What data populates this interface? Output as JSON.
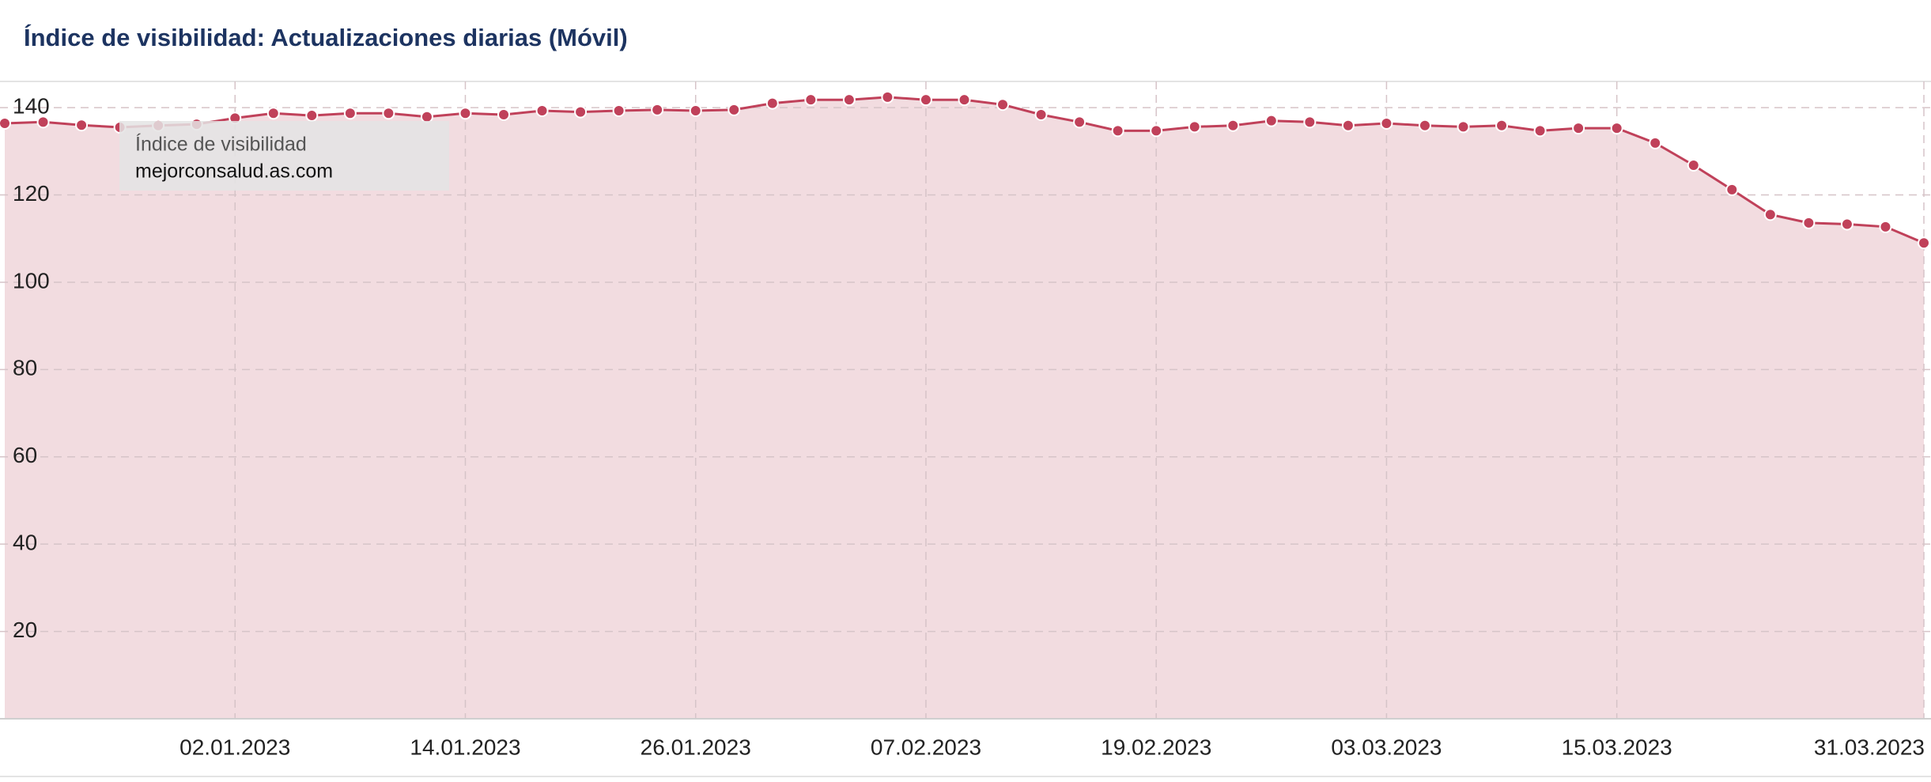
{
  "chart_data": {
    "type": "area",
    "title": "Índice de visibilidad: Actualizaciones diarias (Móvil)",
    "tooltip": {
      "label": "Índice de visibilidad",
      "site": "mejorconsalud.as.com"
    },
    "x": [
      "21.12.2022",
      "23.12.2022",
      "25.12.2022",
      "27.12.2022",
      "29.12.2022",
      "31.12.2022",
      "02.01.2023",
      "04.01.2023",
      "06.01.2023",
      "08.01.2023",
      "10.01.2023",
      "12.01.2023",
      "14.01.2023",
      "16.01.2023",
      "18.01.2023",
      "20.01.2023",
      "22.01.2023",
      "24.01.2023",
      "26.01.2023",
      "28.01.2023",
      "30.01.2023",
      "01.02.2023",
      "03.02.2023",
      "05.02.2023",
      "07.02.2023",
      "09.02.2023",
      "11.02.2023",
      "13.02.2023",
      "15.02.2023",
      "17.02.2023",
      "19.02.2023",
      "21.02.2023",
      "23.02.2023",
      "25.02.2023",
      "27.02.2023",
      "01.03.2023",
      "03.03.2023",
      "05.03.2023",
      "07.03.2023",
      "09.03.2023",
      "11.03.2023",
      "13.03.2023",
      "15.03.2023",
      "17.03.2023",
      "19.03.2023",
      "21.03.2023",
      "23.03.2023",
      "25.03.2023",
      "27.03.2023",
      "29.03.2023",
      "31.03.2023"
    ],
    "series": [
      {
        "name": "mejorconsalud.as.com",
        "color": "#c0415a",
        "fill": "#f2dce0",
        "values": [
          136.4,
          136.7,
          136,
          135.5,
          135.9,
          136.2,
          137.6,
          138.7,
          138.2,
          138.7,
          138.7,
          137.9,
          138.7,
          138.4,
          139.3,
          139,
          139.3,
          139.5,
          139.3,
          139.5,
          141,
          141.8,
          141.8,
          142.4,
          141.8,
          141.8,
          140.7,
          138.4,
          136.7,
          134.7,
          134.7,
          135.6,
          135.9,
          137,
          136.7,
          135.9,
          136.4,
          135.9,
          135.6,
          135.9,
          134.7,
          135.3,
          135.3,
          131.9,
          126.8,
          121.2,
          115.5,
          113.6,
          113.3,
          112.7,
          109
        ]
      }
    ],
    "xticks": [
      "02.01.2023",
      "14.01.2023",
      "26.01.2023",
      "07.02.2023",
      "19.02.2023",
      "03.03.2023",
      "15.03.2023",
      "31.03.2023"
    ],
    "ylim": [
      0,
      146
    ],
    "yticks": [
      20,
      40,
      60,
      80,
      100,
      120,
      140
    ],
    "grid": true
  }
}
